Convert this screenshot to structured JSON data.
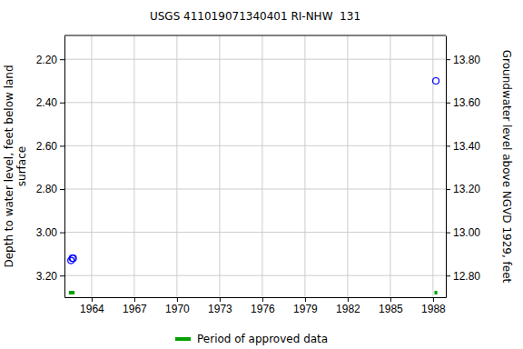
{
  "chart_data": {
    "type": "scatter",
    "title": "USGS 411019071340401 RI-NHW  131",
    "y_label": "Depth to water level, feet below land surface",
    "y2_label": "Groundwater level above NGVD 1929, feet",
    "x": [
      1962.55,
      1962.65,
      1962.7,
      1988.2
    ],
    "values": [
      3.13,
      3.12,
      3.12,
      2.3
    ],
    "color": "#0000ff",
    "marker": "circle",
    "xlim": [
      1962.09,
      1988.9
    ],
    "xticks": [
      1964,
      1967,
      1970,
      1973,
      1976,
      1979,
      1982,
      1985,
      1988
    ],
    "ylim": [
      2.09,
      3.3
    ],
    "yticks": [
      {
        "value": 2.2,
        "label": "2.20"
      },
      {
        "value": 2.4,
        "label": "2.40"
      },
      {
        "value": 2.6,
        "label": "2.60"
      },
      {
        "value": 2.8,
        "label": "2.80"
      },
      {
        "value": 3.0,
        "label": "3.00"
      },
      {
        "value": 3.2,
        "label": "3.20"
      }
    ],
    "y2lim": [
      13.91,
      12.7
    ],
    "y2ticks": [
      {
        "value": 12.8,
        "label": "12.80"
      },
      {
        "value": 13.0,
        "label": "13.00"
      },
      {
        "value": 13.2,
        "label": "13.20"
      },
      {
        "value": 13.4,
        "label": "13.40"
      },
      {
        "value": 13.6,
        "label": "13.60"
      },
      {
        "value": 13.8,
        "label": "13.80"
      }
    ],
    "grid": true,
    "approved_periods": {
      "name": "Period of approved data",
      "color": "#00a000",
      "ranges": [
        [
          1962.4,
          1962.8
        ],
        [
          1988.1,
          1988.3
        ]
      ]
    }
  }
}
